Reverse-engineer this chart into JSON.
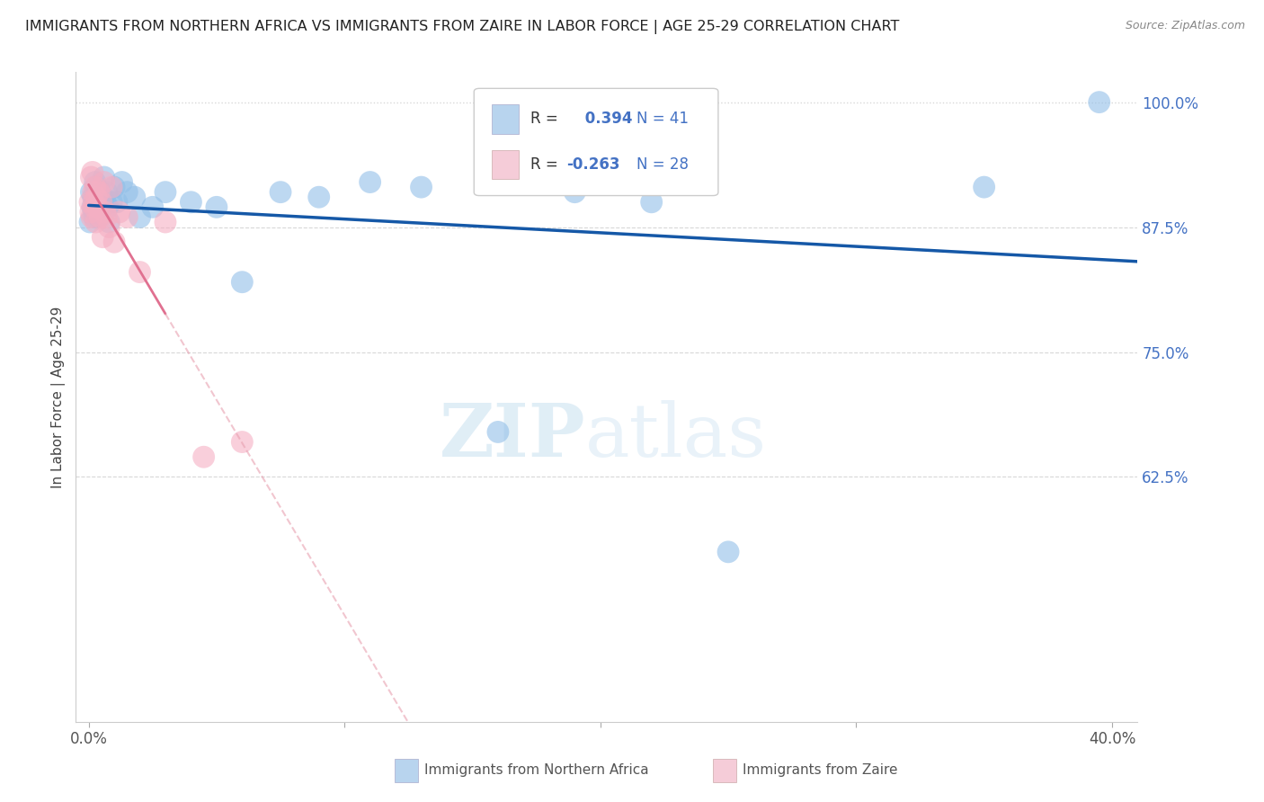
{
  "title": "IMMIGRANTS FROM NORTHERN AFRICA VS IMMIGRANTS FROM ZAIRE IN LABOR FORCE | AGE 25-29 CORRELATION CHART",
  "source": "Source: ZipAtlas.com",
  "ylabel": "In Labor Force | Age 25-29",
  "xlim_min": -0.5,
  "xlim_max": 41.0,
  "ylim_min": 38.0,
  "ylim_max": 103.0,
  "ytick_vals": [
    62.5,
    75.0,
    87.5,
    100.0
  ],
  "ytick_labels": [
    "62.5%",
    "75.0%",
    "87.5%",
    "100.0%"
  ],
  "xtick_vals": [
    0.0,
    10.0,
    20.0,
    30.0,
    40.0
  ],
  "xtick_labels": [
    "0.0%",
    "",
    "",
    "",
    "40.0%"
  ],
  "blue_color": "#92bfe8",
  "pink_color": "#f5afc3",
  "trend_blue_color": "#1558a7",
  "trend_pink_solid_color": "#e07090",
  "trend_pink_dash_color": "#e8a0b0",
  "R_blue": 0.394,
  "N_blue": 41,
  "R_pink": -0.263,
  "N_pink": 28,
  "blue_x": [
    0.05,
    0.1,
    0.15,
    0.18,
    0.2,
    0.22,
    0.25,
    0.28,
    0.3,
    0.35,
    0.4,
    0.45,
    0.5,
    0.55,
    0.6,
    0.65,
    0.7,
    0.75,
    0.8,
    0.9,
    1.0,
    1.1,
    1.3,
    1.5,
    1.8,
    2.0,
    2.5,
    3.0,
    4.0,
    5.0,
    6.0,
    7.5,
    9.0,
    11.0,
    13.0,
    16.0,
    19.0,
    22.0,
    25.0,
    35.0,
    39.5
  ],
  "blue_y": [
    88.0,
    91.0,
    89.5,
    90.5,
    89.0,
    88.5,
    92.0,
    91.5,
    90.0,
    89.0,
    88.5,
    91.0,
    90.5,
    89.5,
    92.5,
    90.0,
    91.0,
    89.5,
    88.0,
    90.0,
    91.5,
    90.0,
    92.0,
    91.0,
    90.5,
    88.5,
    89.5,
    91.0,
    90.0,
    89.5,
    82.0,
    91.0,
    90.5,
    92.0,
    91.5,
    67.0,
    91.0,
    90.0,
    55.0,
    91.5,
    100.0
  ],
  "pink_x": [
    0.05,
    0.08,
    0.1,
    0.12,
    0.15,
    0.18,
    0.2,
    0.22,
    0.25,
    0.28,
    0.3,
    0.35,
    0.4,
    0.45,
    0.5,
    0.55,
    0.6,
    0.65,
    0.7,
    0.8,
    0.9,
    1.0,
    1.2,
    1.5,
    2.0,
    3.0,
    4.5,
    6.0
  ],
  "pink_y": [
    90.0,
    89.0,
    92.5,
    88.5,
    93.0,
    91.0,
    90.0,
    89.5,
    91.5,
    88.0,
    90.5,
    89.5,
    91.0,
    88.5,
    90.0,
    86.5,
    92.0,
    89.0,
    88.5,
    87.5,
    91.5,
    86.0,
    89.0,
    88.5,
    83.0,
    88.0,
    64.5,
    66.0
  ],
  "blue_trend_x0": 0.0,
  "blue_trend_x1": 41.0,
  "pink_solid_x0": 0.0,
  "pink_solid_x1": 3.0,
  "pink_dash_x0": 3.0,
  "pink_dash_x1": 41.0,
  "watermark_zip": "ZIP",
  "watermark_atlas": "atlas",
  "watermark_color": "#c8e0f0",
  "background_color": "#ffffff",
  "grid_color": "#d8d8d8",
  "legend_R_label_color": "#333333",
  "legend_val_color": "#4472c4",
  "axis_label_color": "#555555",
  "ylabel_color": "#444444",
  "legend_blue_patch": "#b8d4ee",
  "legend_pink_patch": "#f5ccd8"
}
